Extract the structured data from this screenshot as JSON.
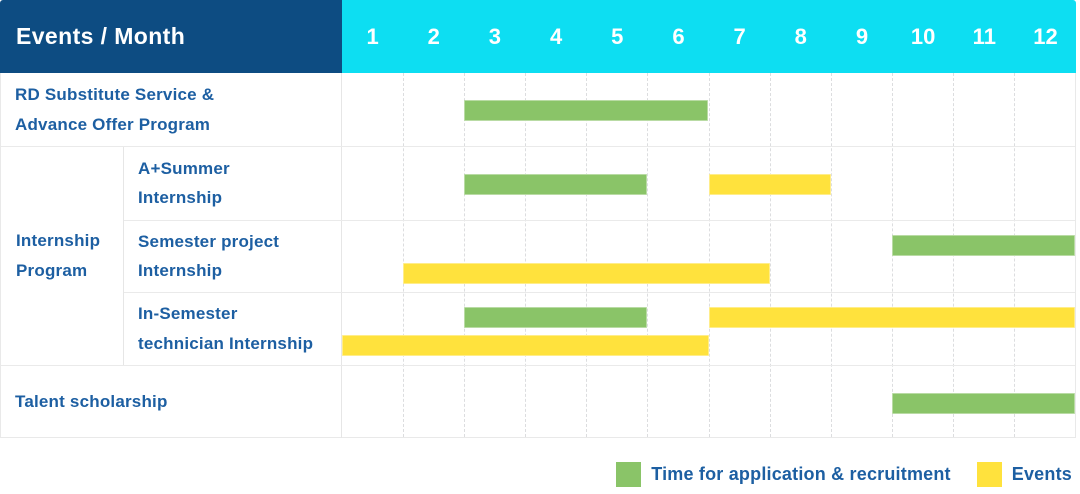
{
  "colors": {
    "header_bg": "#0d4c82",
    "months_bg": "#0ddef2",
    "label_text": "#1d5fa2",
    "application": "#8ac468",
    "events": "#ffe23d",
    "grid_dashed": "#dcdddf",
    "row_divider": "#eaeaea"
  },
  "table": {
    "header": {
      "title": "Events / Month",
      "months": [
        "1",
        "2",
        "3",
        "4",
        "5",
        "6",
        "7",
        "8",
        "9",
        "10",
        "11",
        "12"
      ]
    },
    "group_label_lines": [
      "Internship",
      "Program"
    ],
    "rows": [
      {
        "label_lines": [
          "RD Substitute Service &",
          "Advance Offer Program"
        ]
      },
      {
        "label_lines": [
          "A+Summer",
          "Internship"
        ]
      },
      {
        "label_lines": [
          "Semester project",
          "Internship"
        ]
      },
      {
        "label_lines": [
          "In-Semester",
          "technician Internship"
        ]
      },
      {
        "label_lines": [
          "Talent scholarship"
        ]
      }
    ]
  },
  "legend": {
    "items": [
      {
        "id": "application",
        "label": "Time for application & recruitment",
        "color": "#8ac468"
      },
      {
        "id": "events",
        "label": "Events",
        "color": "#ffe23d"
      }
    ]
  },
  "chart_data": {
    "type": "table",
    "subtype": "gantt",
    "title": "Events / Month",
    "x_unit": "month",
    "x_range": [
      1,
      12
    ],
    "x_ticks": [
      "1",
      "2",
      "3",
      "4",
      "5",
      "6",
      "7",
      "8",
      "9",
      "10",
      "11",
      "12"
    ],
    "legend_entries": [
      {
        "series": "application",
        "label": "Time for application & recruitment",
        "color": "#8ac468"
      },
      {
        "series": "events",
        "label": "Events",
        "color": "#ffe23d"
      }
    ],
    "rows": [
      {
        "group": "",
        "label": "RD Substitute Service & Advance Offer Program",
        "bars": [
          {
            "series": "application",
            "start": 3,
            "end": 6,
            "line": 0
          }
        ]
      },
      {
        "group": "Internship Program",
        "label": "A+Summer Internship",
        "bars": [
          {
            "series": "application",
            "start": 3,
            "end": 5,
            "line": 0
          },
          {
            "series": "events",
            "start": 7,
            "end": 8,
            "line": 0
          }
        ]
      },
      {
        "group": "Internship Program",
        "label": "Semester project Internship",
        "bars": [
          {
            "series": "application",
            "start": 10,
            "end": 12,
            "line": 0
          },
          {
            "series": "events",
            "start": 2,
            "end": 7,
            "line": 1
          }
        ]
      },
      {
        "group": "Internship Program",
        "label": "In-Semester technician Internship",
        "bars": [
          {
            "series": "application",
            "start": 3,
            "end": 5,
            "line": 0
          },
          {
            "series": "events",
            "start": 7,
            "end": 12,
            "line": 0
          },
          {
            "series": "events",
            "start": 1,
            "end": 6,
            "line": 1
          }
        ]
      },
      {
        "group": "",
        "label": "Talent scholarship",
        "bars": [
          {
            "series": "application",
            "start": 10,
            "end": 12,
            "line": 0
          }
        ]
      }
    ]
  }
}
